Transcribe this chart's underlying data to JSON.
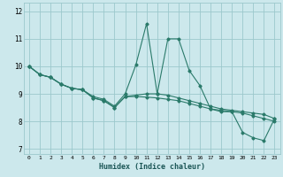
{
  "xlabel": "Humidex (Indice chaleur)",
  "bg_color": "#cce8ec",
  "grid_color": "#9cc8cc",
  "line_color": "#2a7a6a",
  "xlim": [
    -0.5,
    23.5
  ],
  "ylim": [
    6.8,
    12.3
  ],
  "yticks": [
    7,
    8,
    9,
    10,
    11,
    12
  ],
  "xticks": [
    0,
    1,
    2,
    3,
    4,
    5,
    6,
    7,
    8,
    9,
    10,
    11,
    12,
    13,
    14,
    15,
    16,
    17,
    18,
    19,
    20,
    21,
    22,
    23
  ],
  "line1_x": [
    0,
    1,
    2,
    3,
    4,
    5,
    6,
    7,
    8,
    9,
    10,
    11,
    12,
    13,
    14,
    15,
    16,
    17,
    18,
    19,
    20,
    21,
    22,
    23
  ],
  "line1_y": [
    10.0,
    9.7,
    9.6,
    9.35,
    9.2,
    9.15,
    8.9,
    8.8,
    8.55,
    9.0,
    10.05,
    11.55,
    9.0,
    11.0,
    11.0,
    9.85,
    9.3,
    8.45,
    8.35,
    8.35,
    7.6,
    7.4,
    7.3,
    8.1
  ],
  "line2_x": [
    0,
    1,
    2,
    3,
    4,
    5,
    6,
    7,
    8,
    9,
    10,
    11,
    12,
    13,
    14,
    15,
    16,
    17,
    18,
    19,
    20,
    21,
    22,
    23
  ],
  "line2_y": [
    10.0,
    9.7,
    9.6,
    9.35,
    9.2,
    9.15,
    8.85,
    8.75,
    8.5,
    8.9,
    8.95,
    9.0,
    9.0,
    8.95,
    8.85,
    8.75,
    8.65,
    8.55,
    8.45,
    8.4,
    8.35,
    8.3,
    8.25,
    8.1
  ],
  "line3_x": [
    0,
    1,
    2,
    3,
    4,
    5,
    6,
    7,
    8,
    9,
    10,
    11,
    12,
    13,
    14,
    15,
    16,
    17,
    18,
    19,
    20,
    21,
    22,
    23
  ],
  "line3_y": [
    10.0,
    9.7,
    9.6,
    9.35,
    9.2,
    9.15,
    8.85,
    8.75,
    8.5,
    8.9,
    8.9,
    8.88,
    8.85,
    8.8,
    8.75,
    8.65,
    8.55,
    8.45,
    8.4,
    8.35,
    8.3,
    8.2,
    8.1,
    8.0
  ]
}
